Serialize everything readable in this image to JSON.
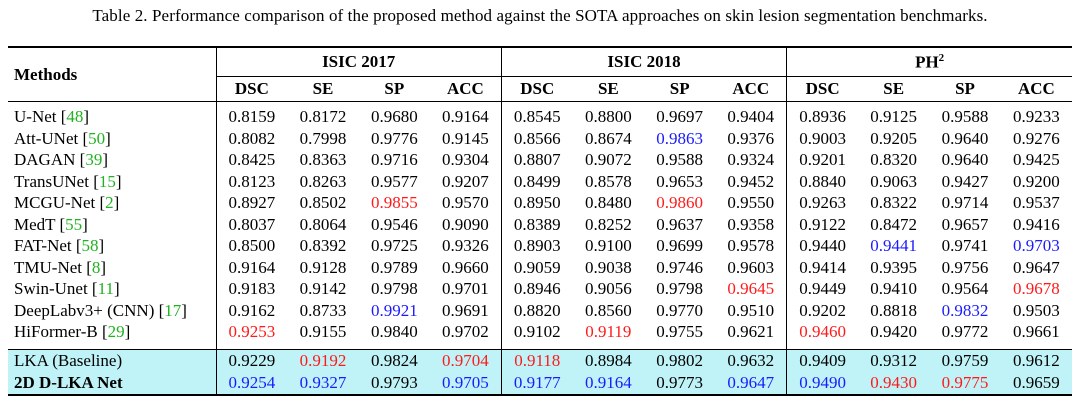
{
  "caption": "Table 2. Performance comparison of the proposed method against the SOTA approaches on skin lesion segmentation benchmarks.",
  "header": {
    "methods": "Methods",
    "groups": [
      {
        "name": "ISIC 2017",
        "sup": ""
      },
      {
        "name": "ISIC 2018",
        "sup": ""
      },
      {
        "name": "PH",
        "sup": "2"
      }
    ],
    "metrics": [
      "DSC",
      "SE",
      "SP",
      "ACC"
    ]
  },
  "colors": {
    "red": "#ff1a1a",
    "blue": "#1a1aff",
    "ref_green": "#1fb31f",
    "highlight": "#bff3f7"
  },
  "rows": [
    {
      "name": "U-Net",
      "ref": "48",
      "values": [
        "0.8159",
        "0.8172",
        "0.9680",
        "0.9164",
        "0.8545",
        "0.8800",
        "0.9697",
        "0.9404",
        "0.8936",
        "0.9125",
        "0.9588",
        "0.9233"
      ],
      "colors": [
        "",
        "",
        "",
        "",
        "",
        "",
        "",
        "",
        "",
        "",
        "",
        ""
      ]
    },
    {
      "name": "Att-UNet",
      "ref": "50",
      "values": [
        "0.8082",
        "0.7998",
        "0.9776",
        "0.9145",
        "0.8566",
        "0.8674",
        "0.9863",
        "0.9376",
        "0.9003",
        "0.9205",
        "0.9640",
        "0.9276"
      ],
      "colors": [
        "",
        "",
        "",
        "",
        "",
        "",
        "blue",
        "",
        "",
        "",
        "",
        ""
      ]
    },
    {
      "name": "DAGAN",
      "ref": "39",
      "values": [
        "0.8425",
        "0.8363",
        "0.9716",
        "0.9304",
        "0.8807",
        "0.9072",
        "0.9588",
        "0.9324",
        "0.9201",
        "0.8320",
        "0.9640",
        "0.9425"
      ],
      "colors": [
        "",
        "",
        "",
        "",
        "",
        "",
        "",
        "",
        "",
        "",
        "",
        ""
      ]
    },
    {
      "name": "TransUNet",
      "ref": "15",
      "values": [
        "0.8123",
        "0.8263",
        "0.9577",
        "0.9207",
        "0.8499",
        "0.8578",
        "0.9653",
        "0.9452",
        "0.8840",
        "0.9063",
        "0.9427",
        "0.9200"
      ],
      "colors": [
        "",
        "",
        "",
        "",
        "",
        "",
        "",
        "",
        "",
        "",
        "",
        ""
      ]
    },
    {
      "name": "MCGU-Net",
      "ref": "2",
      "values": [
        "0.8927",
        "0.8502",
        "0.9855",
        "0.9570",
        "0.8950",
        "0.8480",
        "0.9860",
        "0.9550",
        "0.9263",
        "0.8322",
        "0.9714",
        "0.9537"
      ],
      "colors": [
        "",
        "",
        "red",
        "",
        "",
        "",
        "red",
        "",
        "",
        "",
        "",
        ""
      ]
    },
    {
      "name": "MedT",
      "ref": "55",
      "values": [
        "0.8037",
        "0.8064",
        "0.9546",
        "0.9090",
        "0.8389",
        "0.8252",
        "0.9637",
        "0.9358",
        "0.9122",
        "0.8472",
        "0.9657",
        "0.9416"
      ],
      "colors": [
        "",
        "",
        "",
        "",
        "",
        "",
        "",
        "",
        "",
        "",
        "",
        ""
      ]
    },
    {
      "name": "FAT-Net",
      "ref": "58",
      "values": [
        "0.8500",
        "0.8392",
        "0.9725",
        "0.9326",
        "0.8903",
        "0.9100",
        "0.9699",
        "0.9578",
        "0.9440",
        "0.9441",
        "0.9741",
        "0.9703"
      ],
      "colors": [
        "",
        "",
        "",
        "",
        "",
        "",
        "",
        "",
        "",
        "blue",
        "",
        "blue"
      ]
    },
    {
      "name": "TMU-Net",
      "ref": "8",
      "values": [
        "0.9164",
        "0.9128",
        "0.9789",
        "0.9660",
        "0.9059",
        "0.9038",
        "0.9746",
        "0.9603",
        "0.9414",
        "0.9395",
        "0.9756",
        "0.9647"
      ],
      "colors": [
        "",
        "",
        "",
        "",
        "",
        "",
        "",
        "",
        "",
        "",
        "",
        ""
      ]
    },
    {
      "name": "Swin-Unet",
      "ref": "11",
      "values": [
        "0.9183",
        "0.9142",
        "0.9798",
        "0.9701",
        "0.8946",
        "0.9056",
        "0.9798",
        "0.9645",
        "0.9449",
        "0.9410",
        "0.9564",
        "0.9678"
      ],
      "colors": [
        "",
        "",
        "",
        "",
        "",
        "",
        "",
        "red",
        "",
        "",
        "",
        "red"
      ]
    },
    {
      "name": "DeepLabv3+ (CNN)",
      "ref": "17",
      "values": [
        "0.9162",
        "0.8733",
        "0.9921",
        "0.9691",
        "0.8820",
        "0.8560",
        "0.9770",
        "0.9510",
        "0.9202",
        "0.8818",
        "0.9832",
        "0.9503"
      ],
      "colors": [
        "",
        "",
        "blue",
        "",
        "",
        "",
        "",
        "",
        "",
        "",
        "blue",
        ""
      ]
    },
    {
      "name": "HiFormer-B",
      "ref": "29",
      "values": [
        "0.9253",
        "0.9155",
        "0.9840",
        "0.9702",
        "0.9102",
        "0.9119",
        "0.9755",
        "0.9621",
        "0.9460",
        "0.9420",
        "0.9772",
        "0.9661"
      ],
      "colors": [
        "red",
        "",
        "",
        "",
        "",
        "red",
        "",
        "",
        "red",
        "",
        "",
        ""
      ]
    }
  ],
  "highlight_rows": [
    {
      "name": "LKA (Baseline)",
      "bold": false,
      "values": [
        "0.9229",
        "0.9192",
        "0.9824",
        "0.9704",
        "0.9118",
        "0.8984",
        "0.9802",
        "0.9632",
        "0.9409",
        "0.9312",
        "0.9759",
        "0.9612"
      ],
      "colors": [
        "",
        "red",
        "",
        "red",
        "red",
        "",
        "",
        "",
        "",
        "",
        "",
        ""
      ]
    },
    {
      "name": "2D D-LKA Net",
      "bold": true,
      "values": [
        "0.9254",
        "0.9327",
        "0.9793",
        "0.9705",
        "0.9177",
        "0.9164",
        "0.9773",
        "0.9647",
        "0.9490",
        "0.9430",
        "0.9775",
        "0.9659"
      ],
      "colors": [
        "blue",
        "blue",
        "",
        "blue",
        "blue",
        "blue",
        "",
        "blue",
        "blue",
        "red",
        "red",
        ""
      ]
    }
  ]
}
